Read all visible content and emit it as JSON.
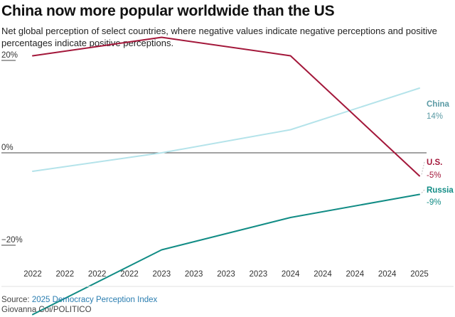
{
  "title": "China now more popular worldwide than the US",
  "subtitle": "Net global perception of select countries, where negative values indicate negative perceptions and positive percentages indicate positive perceptions.",
  "source": {
    "prefix": "Source: ",
    "link_text": "2025 Democracy Perception Index",
    "credit": "Giovanna Coi/POLITICO"
  },
  "chart_data": {
    "type": "line",
    "x": [
      "2022",
      "2022",
      "2022",
      "2022",
      "2023",
      "2023",
      "2023",
      "2023",
      "2024",
      "2024",
      "2024",
      "2024",
      "2025"
    ],
    "ylim": [
      -30,
      25
    ],
    "y_ticks": [
      {
        "value": 20,
        "label": "20%"
      },
      {
        "value": 0,
        "label": "0%"
      },
      {
        "value": -20,
        "label": "−20%"
      }
    ],
    "series": [
      {
        "name": "China",
        "end_label": "14%",
        "color": "#b4e3ea",
        "label_color": "#5a9aa4",
        "points": [
          [
            0,
            -4
          ],
          [
            4,
            0
          ],
          [
            8,
            5
          ],
          [
            12,
            14
          ]
        ]
      },
      {
        "name": "U.S.",
        "end_label": "-5%",
        "color": "#a3173a",
        "label_color": "#a3173a",
        "points": [
          [
            0,
            21
          ],
          [
            4,
            25
          ],
          [
            8,
            21
          ],
          [
            12,
            -5
          ]
        ]
      },
      {
        "name": "Russia",
        "end_label": "-9%",
        "color": "#118c85",
        "label_color": "#118c85",
        "points": [
          [
            0,
            -35
          ],
          [
            4,
            -21
          ],
          [
            8,
            -14
          ],
          [
            12,
            -9
          ]
        ]
      }
    ]
  }
}
